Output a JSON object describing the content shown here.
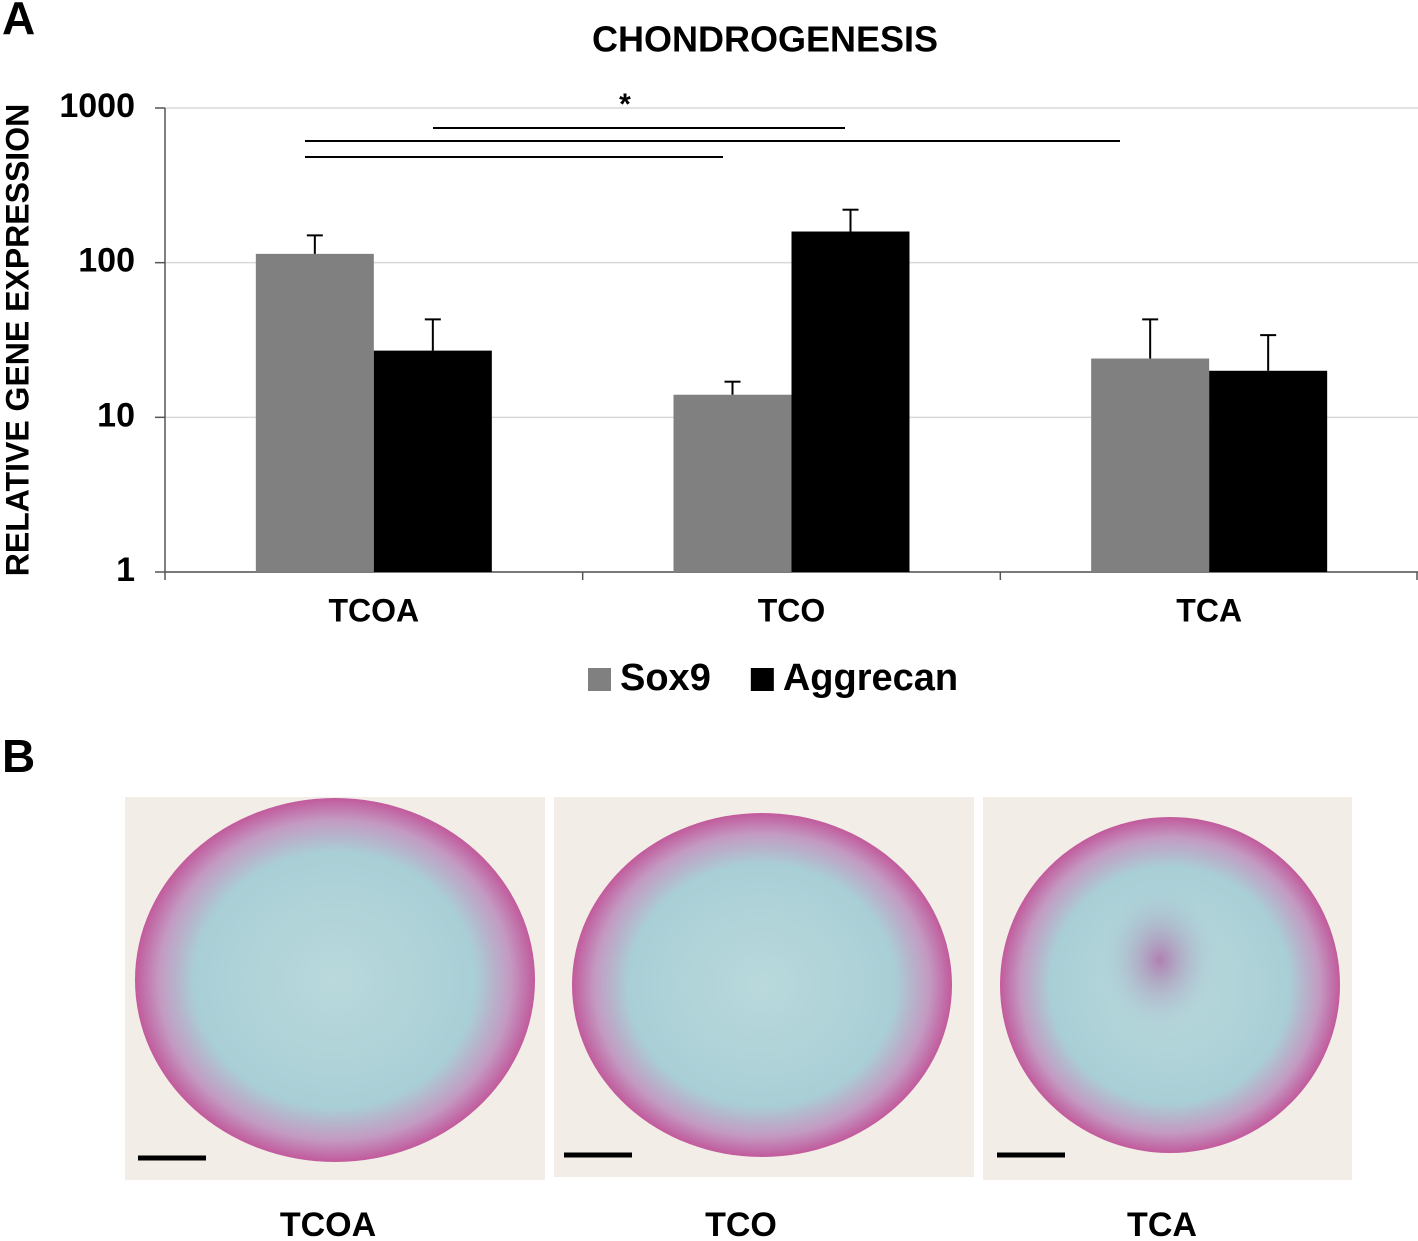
{
  "panel_labels": [
    "A",
    "B"
  ],
  "chart_data": {
    "type": "bar",
    "title": "CHONDROGENESIS",
    "y_label": "RELATIVE GENE EXPRESSION",
    "categories": [
      "TCOA",
      "TCO",
      "TCA"
    ],
    "series": [
      {
        "name": "Sox9",
        "color": "#808080",
        "values": [
          114,
          14,
          24
        ],
        "errors": [
          36,
          3,
          19
        ]
      },
      {
        "name": "Aggrecan",
        "color": "#000000",
        "values": [
          27,
          159,
          20
        ],
        "errors": [
          16,
          61,
          14
        ]
      }
    ],
    "ylim": [
      1,
      1000
    ],
    "yticks": [
      1,
      10,
      100,
      1000
    ],
    "log_scale": true,
    "grid": true,
    "legend": "bottom",
    "annotation": "*"
  },
  "images": {
    "captions": [
      "TCOA",
      "TCO",
      "TCA"
    ]
  }
}
